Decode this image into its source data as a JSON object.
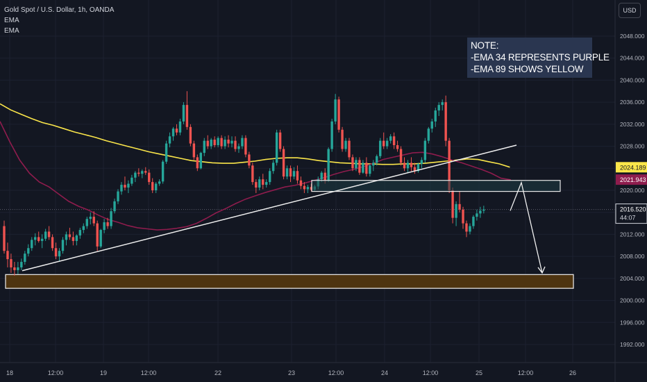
{
  "header": {
    "symbol": "Gold Spot / U.S. Dollar, 1h, OANDA",
    "indicators": [
      "EMA",
      "EMA"
    ]
  },
  "currency_button": "USD",
  "note": {
    "lines": [
      "NOTE:",
      "-EMA 34 REPRESENTS PURPLE",
      "-EMA 89 SHOWS YELLOW"
    ]
  },
  "colors": {
    "background": "#131722",
    "up_candle": "#26a69a",
    "down_candle": "#ef5350",
    "ema34": "#8e1c4d",
    "ema89": "#fbe64a",
    "support_zone": "#4e3410",
    "note_bg": "#2a3650"
  },
  "price_tags": {
    "ema89": "2024.189",
    "ema34": "2021.943",
    "last": "2016.520",
    "countdown": "44:07"
  },
  "chart_data": {
    "type": "candlestick",
    "title": "Gold Spot / U.S. Dollar, 1h, OANDA",
    "xlabel": "",
    "ylabel": "",
    "y_ticks": [
      "2048.000",
      "2044.000",
      "2040.000",
      "2036.000",
      "2032.000",
      "2028.000",
      "2024.000",
      "2020.000",
      "2016.000",
      "2012.000",
      "2008.000",
      "2004.000",
      "2000.000",
      "1996.000",
      "1992.000"
    ],
    "ylim": [
      1990.5,
      2051.2
    ],
    "x_ticks": [
      "18",
      "12:00",
      "19",
      "12:00",
      "22",
      "23",
      "12:00",
      "24",
      "12:00",
      "25",
      "12:00",
      "26"
    ],
    "last_price": 2016.52,
    "ema34_last": 2021.943,
    "ema89_last": 2024.189,
    "legend": [
      "EMA",
      "EMA"
    ],
    "annotations": [
      "NOTE:",
      "-EMA 34 REPRESENTS PURPLE",
      "-EMA 89 SHOWS YELLOW"
    ],
    "trendline": {
      "from": [
        2005.4,
        "18 01:00"
      ],
      "to": [
        2028.2,
        "25 13:00"
      ]
    },
    "resistance_zone": [
      2019.8,
      2021.8
    ],
    "support_zone": [
      2002.2,
      2004.7
    ],
    "projection_path": [
      2016.3,
      2021.4,
      2005.0
    ],
    "candles": [
      [
        2013.5,
        2014.5,
        2008.5,
        2009.0
      ],
      [
        2009.0,
        2010.5,
        2006.0,
        2007.5
      ],
      [
        2007.5,
        2008.5,
        2005.0,
        2006.0
      ],
      [
        2006.0,
        2007.0,
        2004.5,
        2005.5
      ],
      [
        2005.5,
        2007.0,
        2004.8,
        2006.0
      ],
      [
        2006.0,
        2007.6,
        2005.5,
        2007.0
      ],
      [
        2007.0,
        2009.0,
        2006.5,
        2008.5
      ],
      [
        2008.5,
        2010.2,
        2008.0,
        2009.5
      ],
      [
        2009.5,
        2011.5,
        2009.0,
        2011.0
      ],
      [
        2011.0,
        2012.2,
        2010.0,
        2011.5
      ],
      [
        2011.5,
        2012.5,
        2010.5,
        2010.8
      ],
      [
        2010.8,
        2012.0,
        2009.5,
        2011.2
      ],
      [
        2011.2,
        2013.0,
        2010.8,
        2012.5
      ],
      [
        2012.5,
        2013.5,
        2011.0,
        2011.5
      ],
      [
        2011.5,
        2012.0,
        2009.0,
        2009.5
      ],
      [
        2009.5,
        2010.5,
        2007.5,
        2008.0
      ],
      [
        2008.0,
        2009.5,
        2007.2,
        2009.0
      ],
      [
        2009.0,
        2011.5,
        2008.5,
        2011.0
      ],
      [
        2011.0,
        2012.5,
        2010.0,
        2012.0
      ],
      [
        2012.0,
        2013.2,
        2011.0,
        2011.5
      ],
      [
        2011.5,
        2012.5,
        2010.0,
        2010.8
      ],
      [
        2010.8,
        2012.0,
        2010.0,
        2011.8
      ],
      [
        2011.8,
        2013.2,
        2011.2,
        2012.8
      ],
      [
        2012.8,
        2014.0,
        2012.2,
        2013.5
      ],
      [
        2013.5,
        2015.2,
        2013.0,
        2014.8
      ],
      [
        2014.8,
        2016.0,
        2013.8,
        2015.2
      ],
      [
        2015.2,
        2016.2,
        2013.5,
        2014.0
      ],
      [
        2014.0,
        2014.5,
        2009.0,
        2009.8
      ],
      [
        2009.8,
        2013.0,
        2009.5,
        2012.8
      ],
      [
        2012.8,
        2014.8,
        2012.2,
        2014.2
      ],
      [
        2014.2,
        2015.0,
        2013.0,
        2013.5
      ],
      [
        2013.5,
        2016.8,
        2013.0,
        2016.2
      ],
      [
        2016.2,
        2018.5,
        2015.8,
        2018.0
      ],
      [
        2018.0,
        2020.2,
        2017.5,
        2019.8
      ],
      [
        2019.8,
        2021.5,
        2019.2,
        2021.0
      ],
      [
        2021.0,
        2022.5,
        2020.0,
        2020.5
      ],
      [
        2020.5,
        2021.8,
        2019.5,
        2021.2
      ],
      [
        2021.2,
        2022.8,
        2020.8,
        2022.3
      ],
      [
        2022.3,
        2023.5,
        2021.5,
        2023.2
      ],
      [
        2023.2,
        2024.0,
        2022.5,
        2023.0
      ],
      [
        2023.0,
        2023.8,
        2022.2,
        2023.5
      ],
      [
        2023.5,
        2024.2,
        2022.8,
        2023.2
      ],
      [
        2023.2,
        2023.8,
        2021.0,
        2021.5
      ],
      [
        2021.5,
        2022.2,
        2019.5,
        2020.0
      ],
      [
        2020.0,
        2021.5,
        2019.5,
        2021.2
      ],
      [
        2021.2,
        2022.0,
        2020.8,
        2021.6
      ],
      [
        2021.6,
        2025.5,
        2021.2,
        2025.2
      ],
      [
        2025.2,
        2029.0,
        2024.8,
        2028.5
      ],
      [
        2028.5,
        2030.5,
        2027.8,
        2029.8
      ],
      [
        2029.8,
        2031.5,
        2029.0,
        2031.2
      ],
      [
        2031.2,
        2032.0,
        2030.0,
        2030.5
      ],
      [
        2030.5,
        2033.0,
        2030.0,
        2032.5
      ],
      [
        2032.5,
        2036.0,
        2032.0,
        2035.5
      ],
      [
        2035.5,
        2038.0,
        2031.0,
        2031.5
      ],
      [
        2031.5,
        2032.0,
        2028.0,
        2028.5
      ],
      [
        2028.5,
        2029.0,
        2025.5,
        2026.0
      ],
      [
        2026.0,
        2026.5,
        2023.5,
        2024.0
      ],
      [
        2024.0,
        2027.0,
        2023.8,
        2026.8
      ],
      [
        2026.8,
        2029.5,
        2026.2,
        2029.0
      ],
      [
        2029.0,
        2030.0,
        2027.5,
        2028.0
      ],
      [
        2028.0,
        2029.5,
        2027.5,
        2029.2
      ],
      [
        2029.2,
        2029.8,
        2027.8,
        2028.2
      ],
      [
        2028.2,
        2029.8,
        2027.8,
        2029.5
      ],
      [
        2029.5,
        2030.0,
        2027.5,
        2028.0
      ],
      [
        2028.0,
        2029.8,
        2027.5,
        2029.2
      ],
      [
        2029.2,
        2030.0,
        2027.8,
        2028.5
      ],
      [
        2028.5,
        2029.8,
        2027.8,
        2029.0
      ],
      [
        2029.0,
        2029.8,
        2027.0,
        2027.5
      ],
      [
        2027.5,
        2028.5,
        2026.8,
        2028.0
      ],
      [
        2028.0,
        2030.0,
        2027.5,
        2029.5
      ],
      [
        2029.5,
        2030.0,
        2026.0,
        2026.5
      ],
      [
        2026.5,
        2027.0,
        2024.0,
        2024.5
      ],
      [
        2024.5,
        2025.0,
        2021.0,
        2021.5
      ],
      [
        2021.5,
        2022.0,
        2019.5,
        2020.5
      ],
      [
        2020.5,
        2022.5,
        2020.0,
        2022.0
      ],
      [
        2022.0,
        2023.0,
        2020.2,
        2021.0
      ],
      [
        2021.0,
        2022.0,
        2020.5,
        2021.5
      ],
      [
        2021.5,
        2024.0,
        2021.0,
        2023.5
      ],
      [
        2023.5,
        2025.5,
        2023.0,
        2025.0
      ],
      [
        2025.0,
        2031.0,
        2024.5,
        2030.5
      ],
      [
        2030.5,
        2031.0,
        2027.0,
        2027.5
      ],
      [
        2027.5,
        2028.0,
        2022.0,
        2022.5
      ],
      [
        2022.5,
        2024.5,
        2022.0,
        2024.0
      ],
      [
        2024.0,
        2024.5,
        2021.5,
        2022.5
      ],
      [
        2022.5,
        2024.2,
        2022.0,
        2023.5
      ],
      [
        2023.5,
        2024.5,
        2021.2,
        2021.8
      ],
      [
        2021.8,
        2022.5,
        2020.2,
        2020.8
      ],
      [
        2020.8,
        2021.5,
        2019.5,
        2020.2
      ],
      [
        2020.2,
        2021.0,
        2019.5,
        2020.6
      ],
      [
        2020.6,
        2021.2,
        2019.8,
        2020.1
      ],
      [
        2020.1,
        2021.0,
        2019.8,
        2020.7
      ],
      [
        2020.7,
        2022.5,
        2020.2,
        2022.0
      ],
      [
        2022.0,
        2023.5,
        2021.5,
        2023.2
      ],
      [
        2023.2,
        2024.0,
        2021.2,
        2021.8
      ],
      [
        2021.8,
        2027.8,
        2021.5,
        2027.5
      ],
      [
        2027.5,
        2033.0,
        2027.0,
        2032.5
      ],
      [
        2032.5,
        2037.5,
        2032.0,
        2036.5
      ],
      [
        2036.5,
        2037.0,
        2030.5,
        2031.0
      ],
      [
        2031.0,
        2031.5,
        2027.0,
        2027.5
      ],
      [
        2027.5,
        2029.5,
        2027.0,
        2029.0
      ],
      [
        2029.0,
        2029.5,
        2025.5,
        2026.0
      ],
      [
        2026.0,
        2026.5,
        2023.5,
        2024.0
      ],
      [
        2024.0,
        2026.0,
        2023.5,
        2025.5
      ],
      [
        2025.5,
        2026.0,
        2022.8,
        2023.2
      ],
      [
        2023.2,
        2025.5,
        2023.0,
        2025.0
      ],
      [
        2025.0,
        2026.0,
        2022.5,
        2023.0
      ],
      [
        2023.0,
        2024.8,
        2022.5,
        2024.5
      ],
      [
        2024.5,
        2025.5,
        2023.5,
        2025.0
      ],
      [
        2025.0,
        2026.5,
        2024.5,
        2026.2
      ],
      [
        2026.2,
        2029.5,
        2025.8,
        2029.0
      ],
      [
        2029.0,
        2030.5,
        2027.5,
        2028.0
      ],
      [
        2028.0,
        2029.5,
        2027.5,
        2029.0
      ],
      [
        2029.0,
        2030.2,
        2028.5,
        2029.8
      ],
      [
        2029.8,
        2030.5,
        2027.5,
        2028.2
      ],
      [
        2028.2,
        2029.0,
        2027.0,
        2027.5
      ],
      [
        2027.5,
        2028.0,
        2024.5,
        2025.0
      ],
      [
        2025.0,
        2026.0,
        2023.5,
        2024.0
      ],
      [
        2024.0,
        2025.5,
        2023.2,
        2025.0
      ],
      [
        2025.0,
        2026.0,
        2023.5,
        2024.2
      ],
      [
        2024.2,
        2025.0,
        2023.0,
        2023.5
      ],
      [
        2023.5,
        2025.0,
        2023.2,
        2024.8
      ],
      [
        2024.8,
        2026.0,
        2024.0,
        2025.5
      ],
      [
        2025.5,
        2029.5,
        2025.0,
        2029.0
      ],
      [
        2029.0,
        2031.5,
        2028.5,
        2031.2
      ],
      [
        2031.2,
        2033.0,
        2030.5,
        2032.5
      ],
      [
        2032.5,
        2035.0,
        2031.5,
        2034.5
      ],
      [
        2034.5,
        2036.0,
        2033.5,
        2035.5
      ],
      [
        2035.5,
        2036.5,
        2034.5,
        2036.0
      ],
      [
        2036.0,
        2037.2,
        2028.0,
        2029.0
      ],
      [
        2029.0,
        2029.5,
        2019.5,
        2020.0
      ],
      [
        2020.0,
        2020.5,
        2014.0,
        2015.0
      ],
      [
        2015.0,
        2018.0,
        2013.5,
        2017.5
      ],
      [
        2017.5,
        2019.8,
        2016.0,
        2016.5
      ],
      [
        2016.5,
        2017.0,
        2013.0,
        2014.0
      ],
      [
        2014.0,
        2014.5,
        2011.5,
        2012.5
      ],
      [
        2012.5,
        2014.0,
        2012.0,
        2013.5
      ],
      [
        2013.5,
        2015.5,
        2013.0,
        2015.2
      ],
      [
        2015.2,
        2016.5,
        2014.5,
        2015.8
      ],
      [
        2015.8,
        2017.0,
        2015.0,
        2016.3
      ],
      [
        2016.3,
        2017.2,
        2015.8,
        2016.52
      ]
    ],
    "ema34": [
      2032.5,
      2028.8,
      2025.5,
      2023.1,
      2021.5,
      2020.6,
      2019.3,
      2018.0,
      2017.1,
      2016.4,
      2015.5,
      2014.7,
      2014.2,
      2013.6,
      2013.2,
      2013.0,
      2012.8,
      2012.9,
      2013.1,
      2013.4,
      2014.0,
      2014.9,
      2015.9,
      2016.7,
      2017.6,
      2018.4,
      2019.0,
      2019.6,
      2020.1,
      2020.6,
      2020.9,
      2021.3,
      2021.8,
      2022.3,
      2022.9,
      2023.4,
      2023.8,
      2024.3,
      2024.9,
      2025.6,
      2026.0,
      2026.4,
      2026.8,
      2026.9,
      2026.6,
      2026.1,
      2025.5,
      2025.0,
      2024.4,
      2023.8,
      2023.1,
      2022.2,
      2021.9
    ],
    "ema89": [
      2035.7,
      2034.6,
      2033.8,
      2033.0,
      2032.3,
      2031.8,
      2031.2,
      2030.6,
      2030.1,
      2029.6,
      2029.0,
      2028.5,
      2028.0,
      2027.5,
      2027.0,
      2026.6,
      2026.2,
      2025.8,
      2025.4,
      2025.2,
      2025.0,
      2024.9,
      2024.9,
      2025.1,
      2025.3,
      2025.6,
      2025.8,
      2025.9,
      2025.9,
      2025.7,
      2025.4,
      2025.2,
      2025.0,
      2024.9,
      2024.8,
      2024.8,
      2024.7,
      2024.7,
      2024.8,
      2024.8,
      2024.9,
      2025.1,
      2025.3,
      2025.5,
      2025.7,
      2025.6,
      2025.2,
      2024.8,
      2024.2
    ]
  }
}
